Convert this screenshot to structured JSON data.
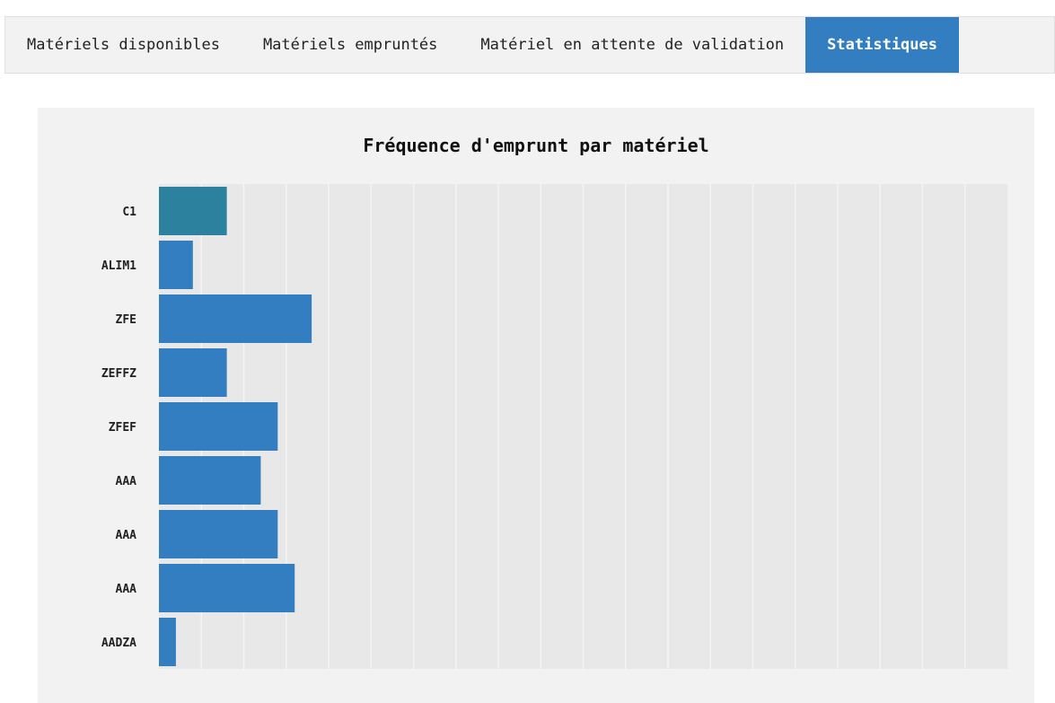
{
  "tabs": [
    {
      "label": "Matériels disponibles",
      "active": false
    },
    {
      "label": "Matériels empruntés",
      "active": false
    },
    {
      "label": "Matériel en attente de validation",
      "active": false
    },
    {
      "label": "Statistiques",
      "active": true
    }
  ],
  "colors": {
    "accent": "#337ec1",
    "highlight_bar": "#2c819e",
    "plot_bg": "#e8e8e8",
    "panel_bg": "#f2f2f2"
  },
  "chart_data": {
    "type": "bar",
    "orientation": "horizontal",
    "title": "Fréquence d'emprunt par matériel",
    "categories": [
      "C1",
      "ALIM1",
      "ZFE",
      "ZEFFZ",
      "ZFEF",
      "AAA",
      "AAA",
      "AAA",
      "AADZA"
    ],
    "values": [
      4,
      2,
      9,
      4,
      7,
      6,
      7,
      8,
      1
    ],
    "highlighted_index": 0,
    "xlim": [
      0,
      50
    ],
    "grid": true,
    "legend": "none"
  }
}
